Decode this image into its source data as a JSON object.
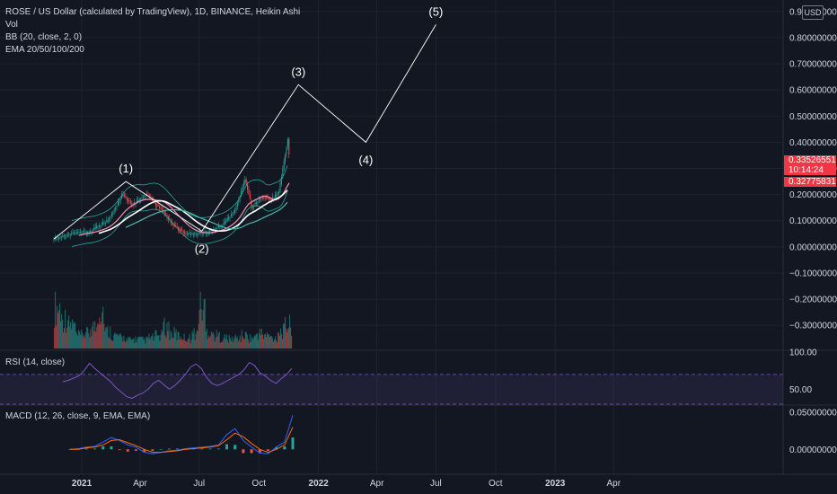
{
  "legend": {
    "title": "ROSE / US Dollar (calculated by TradingView), 1D, BINANCE, Heikin Ashi",
    "vol": "Vol",
    "bb": "BB (20, close, 2, 0)",
    "ema": "EMA 20/50/100/200"
  },
  "rsi_label": "RSI (14, close)",
  "macd_label": "MACD (12, 26, close, 9, EMA, EMA)",
  "currency": "USD",
  "price_last": "0.33526551",
  "countdown": "10:14:24",
  "price_other": "0.32775831",
  "colors": {
    "background": "#131722",
    "bull": "#26a69a",
    "bear": "#ef5350",
    "wave_line": "#ffffff",
    "rsi_line": "#7e57c2",
    "rsi_band": "#7e57c2",
    "macd_line": "#2962ff",
    "signal_line": "#ff6d00",
    "price_tag": "#f23645",
    "ema_white": "#ffffff",
    "ema_pink": "#f48fb1"
  },
  "chart_data": [
    {
      "type": "line",
      "pane": "price",
      "ylim": [
        -0.32,
        0.92
      ],
      "yticks": [
        "0.90000000",
        "0.80000000",
        "0.70000000",
        "0.60000000",
        "0.50000000",
        "0.40000000",
        "0.30000000",
        "0.20000000",
        "0.10000000",
        "0.00000000",
        "−0.10000000",
        "−0.20000000",
        "−0.30000000"
      ],
      "xticks": [
        "2021",
        "Apr",
        "Jul",
        "Oct",
        "2022",
        "Apr",
        "Jul",
        "Oct",
        "2023",
        "Apr"
      ],
      "series": [
        {
          "name": "price",
          "x": [
            "2020-11-19",
            "2020-12-15",
            "2021-01-15",
            "2021-02-10",
            "2021-03-05",
            "2021-03-20",
            "2021-04-10",
            "2021-05-05",
            "2021-05-20",
            "2021-06-10",
            "2021-06-25",
            "2021-07-15",
            "2021-08-05",
            "2021-08-25",
            "2021-09-10",
            "2021-09-20",
            "2021-10-05",
            "2021-10-20",
            "2021-11-01",
            "2021-11-15",
            "2021-11-17"
          ],
          "y": [
            0.03,
            0.05,
            0.06,
            0.1,
            0.2,
            0.16,
            0.2,
            0.14,
            0.09,
            0.05,
            0.05,
            0.06,
            0.08,
            0.14,
            0.26,
            0.15,
            0.19,
            0.18,
            0.21,
            0.42,
            0.335
          ]
        }
      ],
      "wave_count": [
        {
          "label": "(1)",
          "x": "2021-03-10",
          "y": 0.25
        },
        {
          "label": "(2)",
          "x": "2021-07-05",
          "y": 0.06
        },
        {
          "label": "(3)",
          "x": "2021-12-01",
          "y": 0.62
        },
        {
          "label": "(4)",
          "x": "2022-03-15",
          "y": 0.4
        },
        {
          "label": "(5)",
          "x": "2022-07-01",
          "y": 0.85
        }
      ],
      "wave_path": {
        "x": [
          "2020-11-19",
          "2021-03-10",
          "2021-07-05",
          "2021-12-01",
          "2022-03-15",
          "2022-07-01"
        ],
        "y": [
          0.03,
          0.25,
          0.06,
          0.62,
          0.4,
          0.85
        ]
      }
    },
    {
      "type": "bar",
      "pane": "volume",
      "series": [
        {
          "name": "Vol",
          "relative": [
            0.95,
            0.7,
            0.55,
            0.3,
            0.35,
            0.5,
            0.9,
            0.4,
            0.3,
            0.25,
            0.2,
            0.22,
            0.2,
            0.25,
            0.3,
            0.5,
            0.35,
            0.3,
            0.25,
            0.35,
            0.95,
            0.4,
            0.3,
            0.25,
            0.22,
            0.25,
            0.3,
            0.25,
            0.35,
            0.3,
            0.25,
            0.4,
            0.55
          ]
        }
      ]
    },
    {
      "type": "line",
      "pane": "rsi",
      "ylim": [
        30,
        100
      ],
      "yticks": [
        "100.00",
        "50.00"
      ],
      "bands": [
        70,
        30
      ],
      "series": [
        {
          "name": "RSI",
          "y": [
            60,
            62,
            65,
            68,
            75,
            85,
            78,
            72,
            66,
            60,
            52,
            46,
            40,
            38,
            42,
            45,
            50,
            58,
            62,
            56,
            50,
            55,
            62,
            70,
            80,
            84,
            78,
            66,
            58,
            55,
            58,
            62,
            66,
            70,
            76,
            86,
            82,
            72,
            68,
            62,
            58,
            64,
            70,
            78
          ]
        }
      ]
    },
    {
      "type": "line",
      "pane": "macd",
      "ylim": [
        -0.03,
        0.055
      ],
      "yticks": [
        "0.05000000",
        "0.00000000"
      ],
      "series": [
        {
          "name": "MACD",
          "y": [
            0,
            0.001,
            0.003,
            0.004,
            0.01,
            0.016,
            0.012,
            0.006,
            0.003,
            -0.004,
            -0.006,
            -0.004,
            -0.002,
            -0.001,
            0.001,
            0.002,
            0.003,
            0.004,
            0.006,
            0.02,
            0.028,
            0.012,
            0.003,
            -0.005,
            -0.006,
            0.003,
            0.01,
            0.046
          ]
        },
        {
          "name": "Signal",
          "y": [
            0,
            0,
            0.002,
            0.003,
            0.006,
            0.012,
            0.013,
            0.009,
            0.005,
            0,
            -0.004,
            -0.004,
            -0.003,
            -0.002,
            0,
            0.001,
            0.002,
            0.003,
            0.005,
            0.013,
            0.022,
            0.017,
            0.008,
            0,
            -0.004,
            0,
            0.006,
            0.03
          ]
        }
      ]
    }
  ]
}
